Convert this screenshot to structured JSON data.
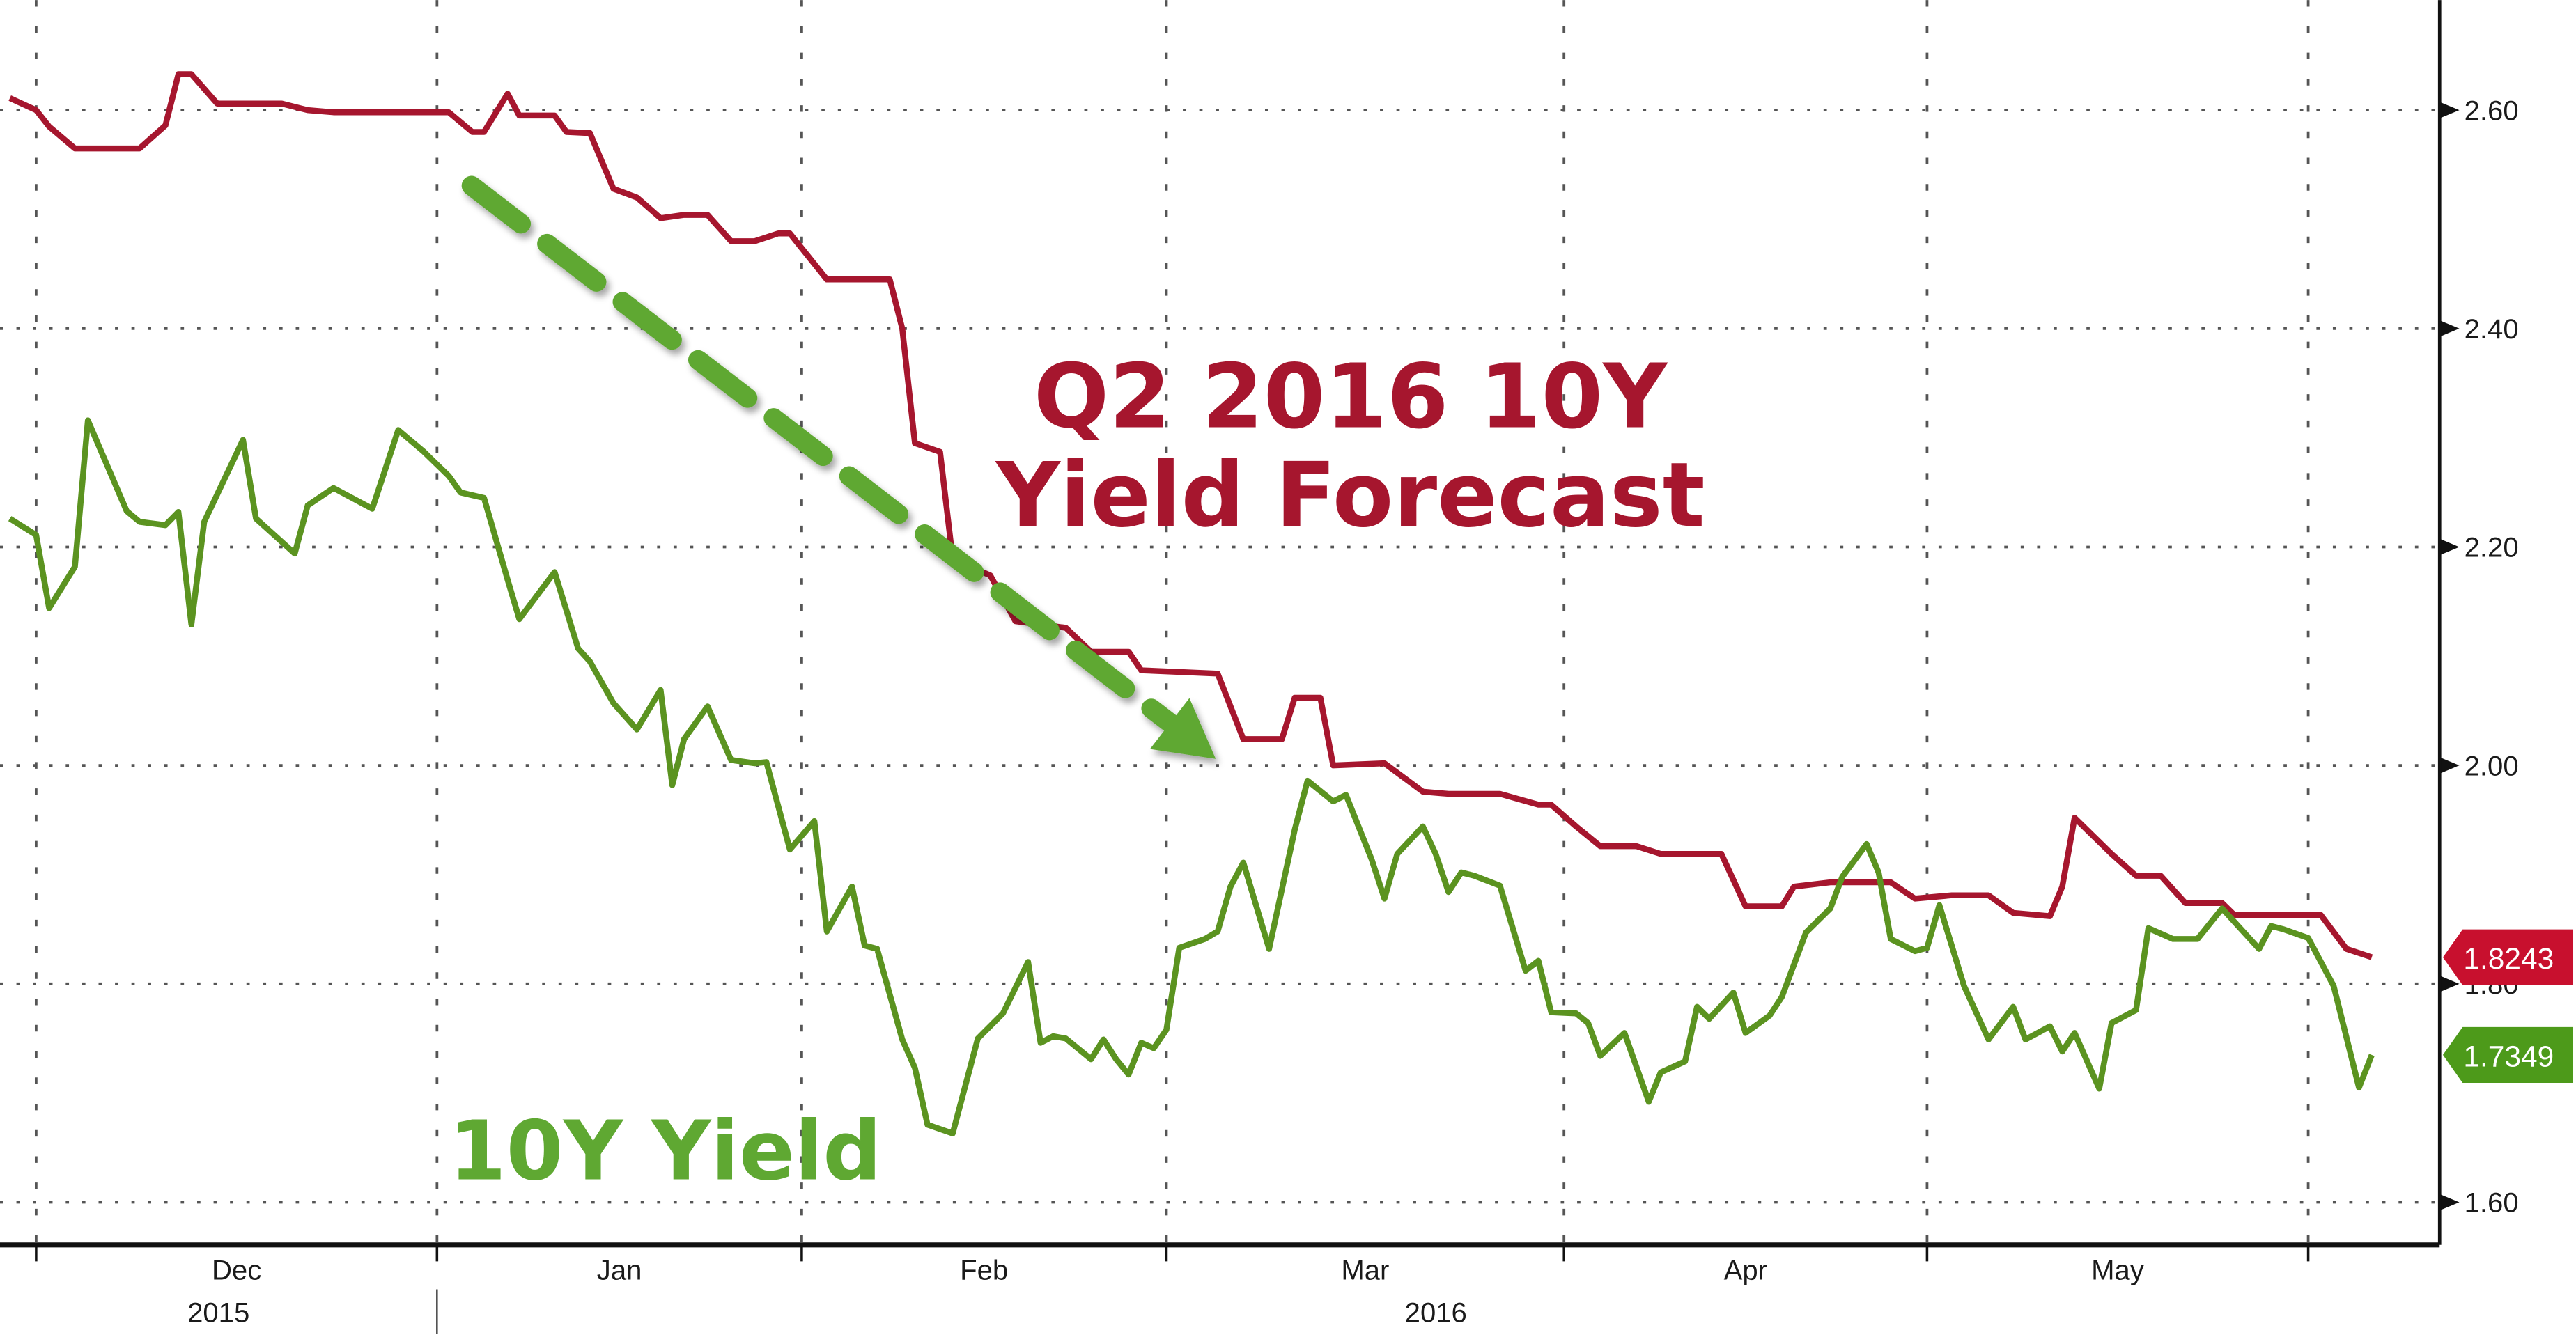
{
  "chart_data": {
    "type": "line",
    "title": "",
    "xlabel": "",
    "ylabel": "",
    "ylim": [
      1.56,
      2.7
    ],
    "y_axis_position": "right",
    "grid": true,
    "y_ticks": [
      "1.60",
      "1.80",
      "2.00",
      "2.20",
      "2.40",
      "2.60"
    ],
    "x_ticks": [
      {
        "label": "Dec",
        "date": "2015-12-01"
      },
      {
        "label": "Jan",
        "date": "2016-01-01"
      },
      {
        "label": "Feb",
        "date": "2016-02-01"
      },
      {
        "label": "Mar",
        "date": "2016-03-01"
      },
      {
        "label": "Apr",
        "date": "2016-04-01"
      },
      {
        "label": "May",
        "date": "2016-05-01"
      }
    ],
    "x_years": [
      {
        "label": "2015",
        "month": "Dec"
      },
      {
        "label": "2016",
        "month": "Mar"
      }
    ],
    "annotations": {
      "forecast_line1": "Q2 2016 10Y",
      "forecast_line2": "Yield Forecast",
      "yield_label": "10Y Yield",
      "arrow": "dashed-arrow-down"
    },
    "series": [
      {
        "name": "Q2 2016 10Y Yield Forecast",
        "color": "#a6162e",
        "last_value": "1.8243",
        "points": [
          [
            "2015-11-29",
            2.611
          ],
          [
            "2015-12-01",
            2.6
          ],
          [
            "2015-12-02",
            2.585
          ],
          [
            "2015-12-04",
            2.565
          ],
          [
            "2015-12-09",
            2.565
          ],
          [
            "2015-12-11",
            2.586
          ],
          [
            "2015-12-12",
            2.633
          ],
          [
            "2015-12-13",
            2.633
          ],
          [
            "2015-12-15",
            2.606
          ],
          [
            "2015-12-20",
            2.606
          ],
          [
            "2015-12-22",
            2.6
          ],
          [
            "2015-12-24",
            2.598
          ],
          [
            "2016-01-02",
            2.598
          ],
          [
            "2016-01-04",
            2.58
          ],
          [
            "2016-01-05",
            2.58
          ],
          [
            "2016-01-07",
            2.615
          ],
          [
            "2016-01-08",
            2.595
          ],
          [
            "2016-01-11",
            2.595
          ],
          [
            "2016-01-12",
            2.58
          ],
          [
            "2016-01-14",
            2.579
          ],
          [
            "2016-01-16",
            2.528
          ],
          [
            "2016-01-18",
            2.52
          ],
          [
            "2016-01-20",
            2.501
          ],
          [
            "2016-01-22",
            2.504
          ],
          [
            "2016-01-24",
            2.504
          ],
          [
            "2016-01-26",
            2.48
          ],
          [
            "2016-01-28",
            2.48
          ],
          [
            "2016-01-30",
            2.487
          ],
          [
            "2016-01-31",
            2.487
          ],
          [
            "2016-02-03",
            2.445
          ],
          [
            "2016-02-08",
            2.445
          ],
          [
            "2016-02-09",
            2.4
          ],
          [
            "2016-02-10",
            2.295
          ],
          [
            "2016-02-12",
            2.287
          ],
          [
            "2016-02-13",
            2.189
          ],
          [
            "2016-02-15",
            2.179
          ],
          [
            "2016-02-16",
            2.174
          ],
          [
            "2016-02-18",
            2.132
          ],
          [
            "2016-02-20",
            2.129
          ],
          [
            "2016-02-22",
            2.126
          ],
          [
            "2016-02-24",
            2.104
          ],
          [
            "2016-02-27",
            2.104
          ],
          [
            "2016-02-28",
            2.087
          ],
          [
            "2016-03-05",
            2.084
          ],
          [
            "2016-03-07",
            2.024
          ],
          [
            "2016-03-10",
            2.024
          ],
          [
            "2016-03-11",
            2.062
          ],
          [
            "2016-03-13",
            2.062
          ],
          [
            "2016-03-14",
            2.0
          ],
          [
            "2016-03-18",
            2.002
          ],
          [
            "2016-03-21",
            1.976
          ],
          [
            "2016-03-23",
            1.974
          ],
          [
            "2016-03-27",
            1.974
          ],
          [
            "2016-03-30",
            1.964
          ],
          [
            "2016-03-31",
            1.964
          ],
          [
            "2016-04-02",
            1.944
          ],
          [
            "2016-04-04",
            1.926
          ],
          [
            "2016-04-07",
            1.926
          ],
          [
            "2016-04-09",
            1.919
          ],
          [
            "2016-04-14",
            1.919
          ],
          [
            "2016-04-16",
            1.871
          ],
          [
            "2016-04-19",
            1.871
          ],
          [
            "2016-04-20",
            1.889
          ],
          [
            "2016-04-23",
            1.893
          ],
          [
            "2016-04-28",
            1.893
          ],
          [
            "2016-04-30",
            1.878
          ],
          [
            "2016-05-03",
            1.881
          ],
          [
            "2016-05-06",
            1.881
          ],
          [
            "2016-05-08",
            1.865
          ],
          [
            "2016-05-11",
            1.862
          ],
          [
            "2016-05-12",
            1.889
          ],
          [
            "2016-05-13",
            1.952
          ],
          [
            "2016-05-16",
            1.919
          ],
          [
            "2016-05-18",
            1.899
          ],
          [
            "2016-05-20",
            1.899
          ],
          [
            "2016-05-22",
            1.874
          ],
          [
            "2016-05-25",
            1.874
          ],
          [
            "2016-05-26",
            1.863
          ],
          [
            "2016-05-31",
            1.863
          ],
          [
            "2016-06-02",
            1.863
          ],
          [
            "2016-06-04",
            1.832
          ],
          [
            "2016-06-06",
            1.8243
          ]
        ]
      },
      {
        "name": "10Y Yield",
        "color": "#5b9320",
        "last_value": "1.7349",
        "points": [
          [
            "2015-11-29",
            2.226
          ],
          [
            "2015-12-01",
            2.211
          ],
          [
            "2015-12-02",
            2.144
          ],
          [
            "2015-12-04",
            2.182
          ],
          [
            "2015-12-05",
            2.316
          ],
          [
            "2015-12-08",
            2.233
          ],
          [
            "2015-12-09",
            2.223
          ],
          [
            "2015-12-11",
            2.22
          ],
          [
            "2015-12-12",
            2.232
          ],
          [
            "2015-12-13",
            2.129
          ],
          [
            "2015-12-14",
            2.223
          ],
          [
            "2015-12-17",
            2.298
          ],
          [
            "2015-12-18",
            2.226
          ],
          [
            "2015-12-21",
            2.194
          ],
          [
            "2015-12-22",
            2.238
          ],
          [
            "2015-12-24",
            2.254
          ],
          [
            "2015-12-27",
            2.235
          ],
          [
            "2015-12-29",
            2.307
          ],
          [
            "2015-12-31",
            2.287
          ],
          [
            "2016-01-02",
            2.265
          ],
          [
            "2016-01-03",
            2.25
          ],
          [
            "2016-01-05",
            2.245
          ],
          [
            "2016-01-07",
            2.17
          ],
          [
            "2016-01-08",
            2.134
          ],
          [
            "2016-01-11",
            2.177
          ],
          [
            "2016-01-13",
            2.107
          ],
          [
            "2016-01-14",
            2.095
          ],
          [
            "2016-01-16",
            2.057
          ],
          [
            "2016-01-18",
            2.033
          ],
          [
            "2016-01-20",
            2.069
          ],
          [
            "2016-01-21",
            1.982
          ],
          [
            "2016-01-22",
            2.024
          ],
          [
            "2016-01-24",
            2.054
          ],
          [
            "2016-01-26",
            2.005
          ],
          [
            "2016-01-28",
            2.002
          ],
          [
            "2016-01-29",
            2.003
          ],
          [
            "2016-01-31",
            1.923
          ],
          [
            "2016-02-02",
            1.949
          ],
          [
            "2016-02-03",
            1.848
          ],
          [
            "2016-02-05",
            1.889
          ],
          [
            "2016-02-06",
            1.835
          ],
          [
            "2016-02-07",
            1.832
          ],
          [
            "2016-02-09",
            1.749
          ],
          [
            "2016-02-10",
            1.723
          ],
          [
            "2016-02-11",
            1.671
          ],
          [
            "2016-02-13",
            1.663
          ],
          [
            "2016-02-15",
            1.75
          ],
          [
            "2016-02-17",
            1.773
          ],
          [
            "2016-02-19",
            1.82
          ],
          [
            "2016-02-20",
            1.746
          ],
          [
            "2016-02-21",
            1.752
          ],
          [
            "2016-02-22",
            1.75
          ],
          [
            "2016-02-24",
            1.731
          ],
          [
            "2016-02-25",
            1.749
          ],
          [
            "2016-02-26",
            1.731
          ],
          [
            "2016-02-27",
            1.717
          ],
          [
            "2016-02-28",
            1.746
          ],
          [
            "2016-02-29",
            1.741
          ],
          [
            "2016-03-01",
            1.758
          ],
          [
            "2016-03-02",
            1.833
          ],
          [
            "2016-03-04",
            1.841
          ],
          [
            "2016-03-05",
            1.848
          ],
          [
            "2016-03-06",
            1.889
          ],
          [
            "2016-03-07",
            1.911
          ],
          [
            "2016-03-09",
            1.832
          ],
          [
            "2016-03-11",
            1.941
          ],
          [
            "2016-03-12",
            1.986
          ],
          [
            "2016-03-14",
            1.967
          ],
          [
            "2016-03-15",
            1.973
          ],
          [
            "2016-03-17",
            1.914
          ],
          [
            "2016-03-18",
            1.878
          ],
          [
            "2016-03-19",
            1.919
          ],
          [
            "2016-03-21",
            1.944
          ],
          [
            "2016-03-22",
            1.919
          ],
          [
            "2016-03-23",
            1.884
          ],
          [
            "2016-03-24",
            1.902
          ],
          [
            "2016-03-25",
            1.899
          ],
          [
            "2016-03-27",
            1.89
          ],
          [
            "2016-03-29",
            1.812
          ],
          [
            "2016-03-30",
            1.821
          ],
          [
            "2016-03-31",
            1.774
          ],
          [
            "2016-04-02",
            1.773
          ],
          [
            "2016-04-03",
            1.764
          ],
          [
            "2016-04-04",
            1.734
          ],
          [
            "2016-04-06",
            1.755
          ],
          [
            "2016-04-08",
            1.692
          ],
          [
            "2016-04-09",
            1.719
          ],
          [
            "2016-04-11",
            1.729
          ],
          [
            "2016-04-12",
            1.779
          ],
          [
            "2016-04-13",
            1.768
          ],
          [
            "2016-04-15",
            1.792
          ],
          [
            "2016-04-16",
            1.755
          ],
          [
            "2016-04-18",
            1.771
          ],
          [
            "2016-04-19",
            1.788
          ],
          [
            "2016-04-21",
            1.847
          ],
          [
            "2016-04-23",
            1.869
          ],
          [
            "2016-04-24",
            1.898
          ],
          [
            "2016-04-26",
            1.928
          ],
          [
            "2016-04-27",
            1.902
          ],
          [
            "2016-04-28",
            1.841
          ],
          [
            "2016-04-30",
            1.83
          ],
          [
            "2016-05-01",
            1.833
          ],
          [
            "2016-05-02",
            1.872
          ],
          [
            "2016-05-04",
            1.798
          ],
          [
            "2016-05-06",
            1.749
          ],
          [
            "2016-05-08",
            1.779
          ],
          [
            "2016-05-09",
            1.749
          ],
          [
            "2016-05-11",
            1.761
          ],
          [
            "2016-05-12",
            1.738
          ],
          [
            "2016-05-13",
            1.755
          ],
          [
            "2016-05-15",
            1.704
          ],
          [
            "2016-05-16",
            1.764
          ],
          [
            "2016-05-18",
            1.776
          ],
          [
            "2016-05-19",
            1.851
          ],
          [
            "2016-05-21",
            1.841
          ],
          [
            "2016-05-23",
            1.841
          ],
          [
            "2016-05-25",
            1.869
          ],
          [
            "2016-05-28",
            1.832
          ],
          [
            "2016-05-29",
            1.853
          ],
          [
            "2016-05-30",
            1.85
          ],
          [
            "2016-06-01",
            1.842
          ],
          [
            "2016-06-03",
            1.798
          ],
          [
            "2016-06-05",
            1.705
          ],
          [
            "2016-06-06",
            1.7349
          ]
        ]
      }
    ]
  }
}
